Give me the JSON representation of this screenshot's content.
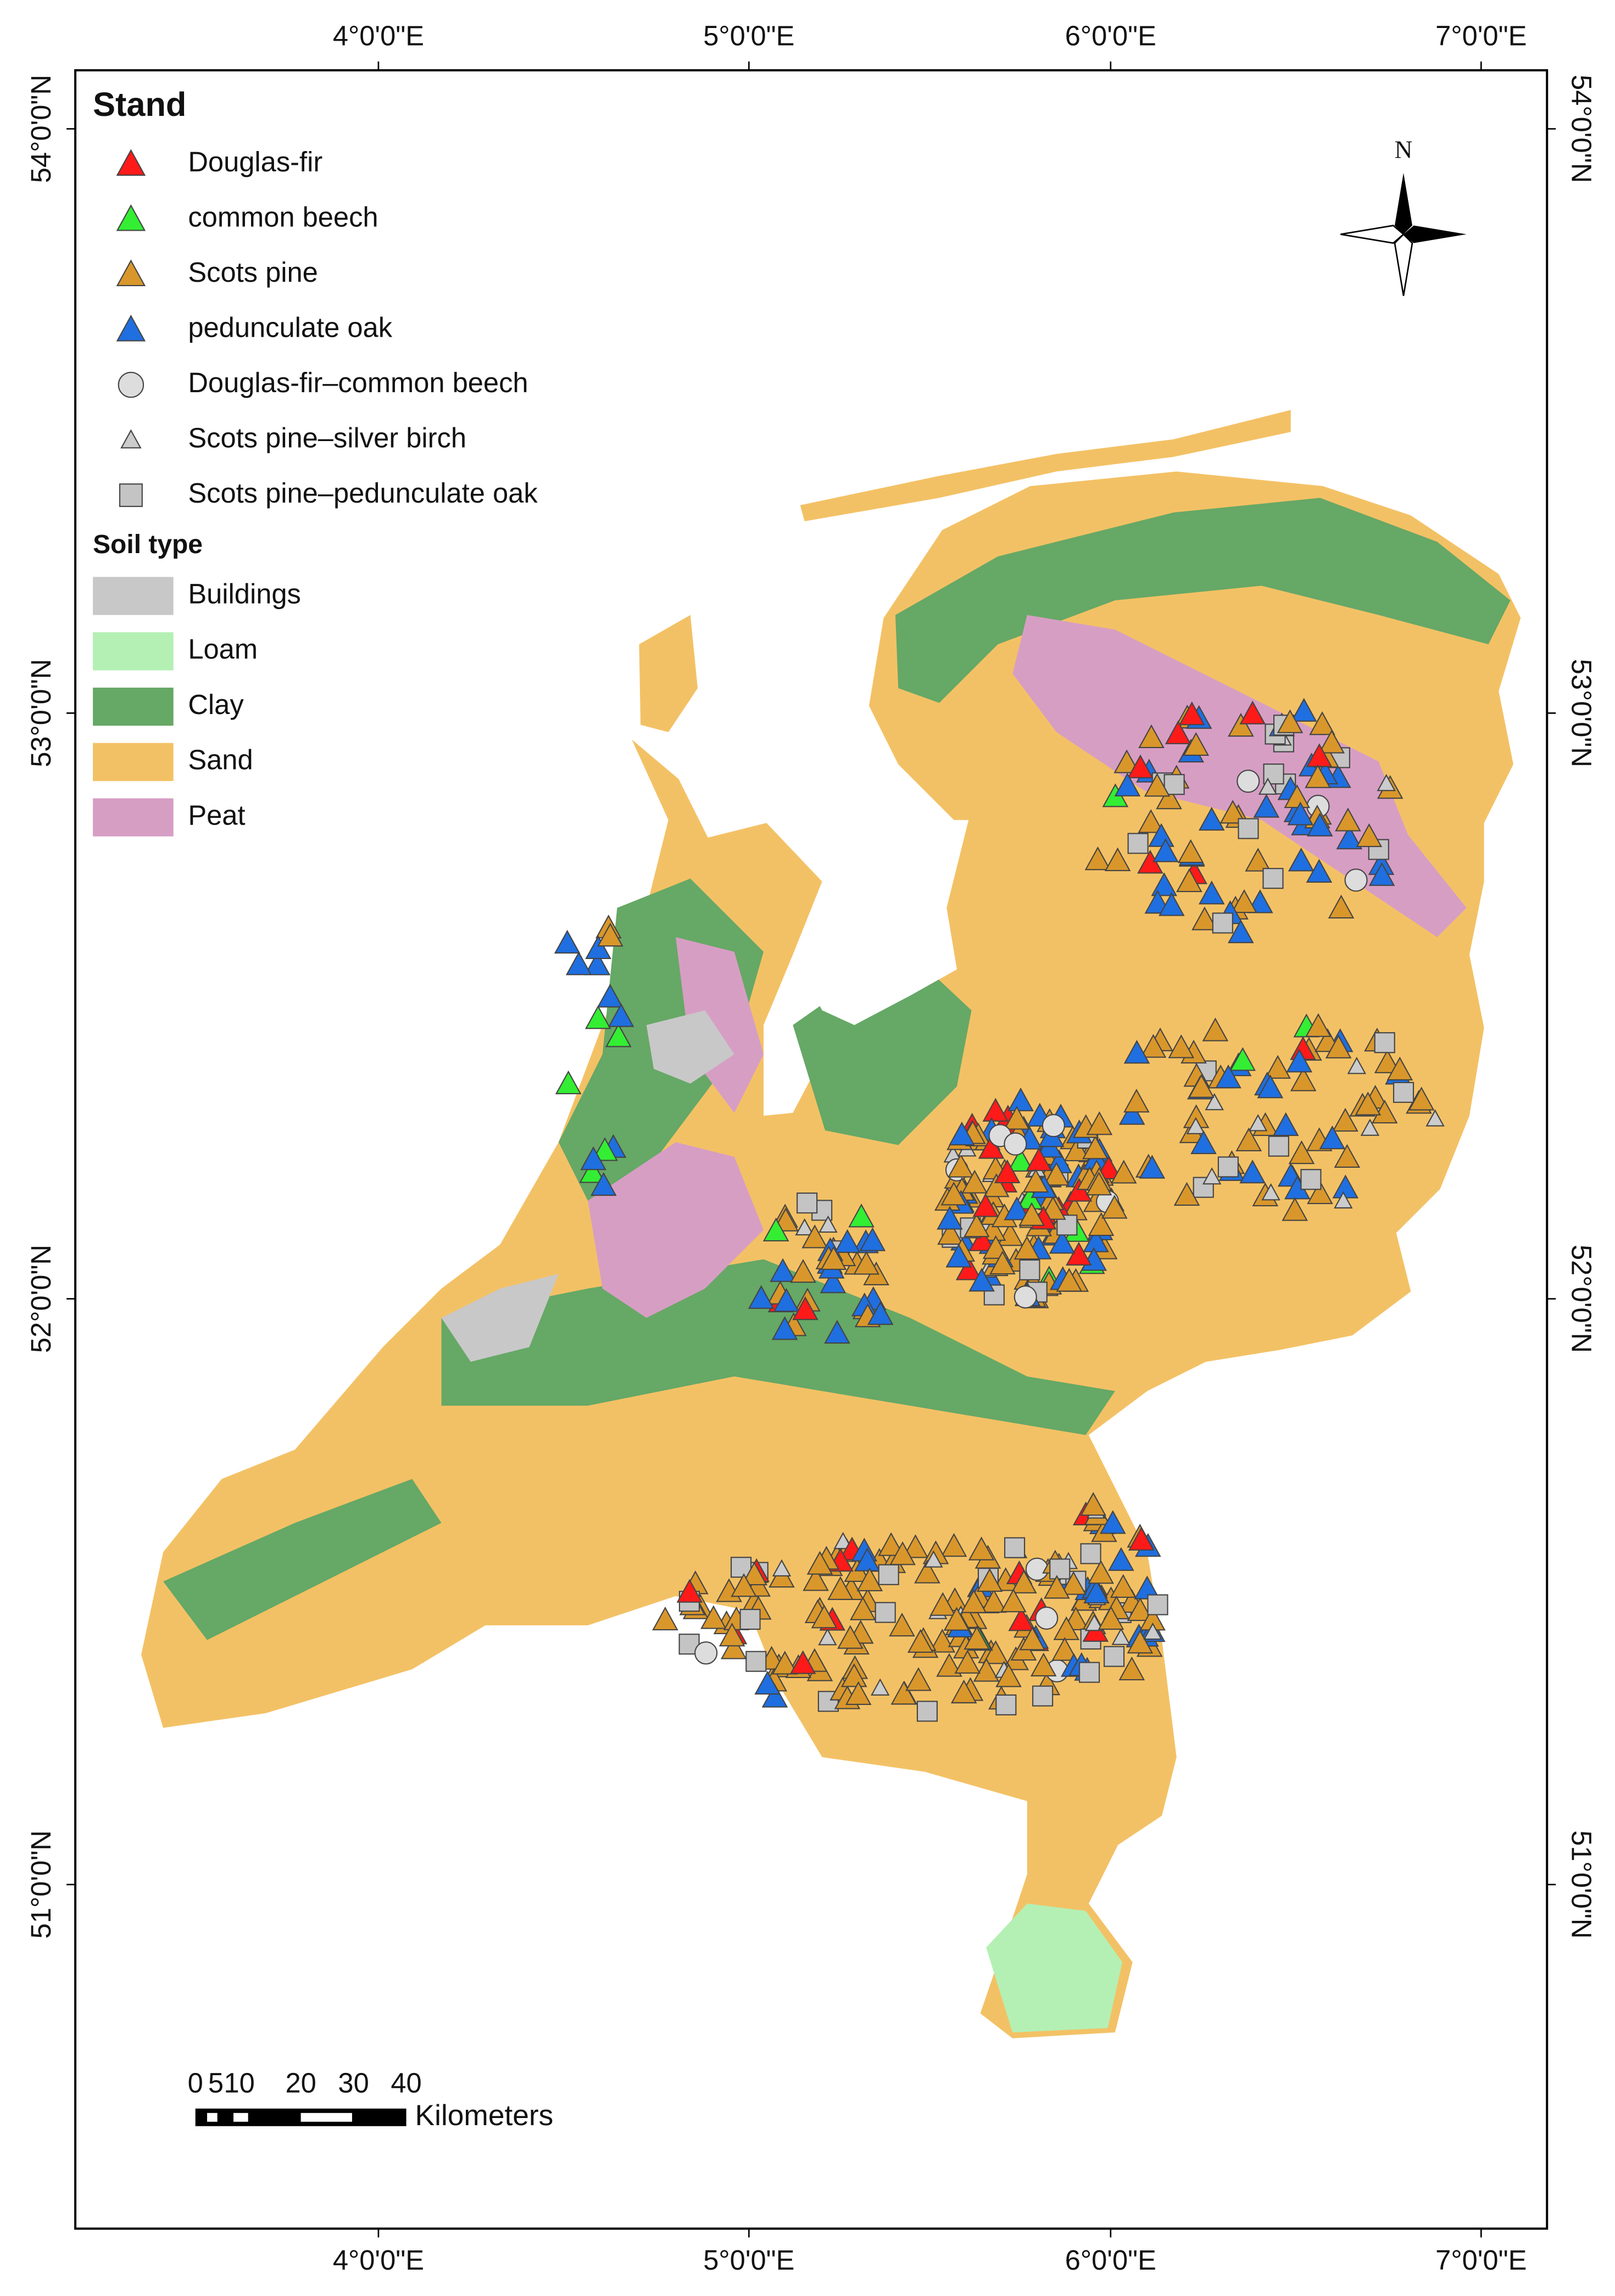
{
  "frame": {
    "longitude_labels": [
      "4°0'0\"E",
      "5°0'0\"E",
      "6°0'0\"E",
      "7°0'0\"E"
    ],
    "latitude_labels": [
      "54°0'0\"N",
      "53°0'0\"N",
      "52°0'0\"N",
      "51°0'0\"N"
    ]
  },
  "legend": {
    "stand_title": "Stand",
    "stand": [
      {
        "label": "Douglas-fir",
        "color": "#ff1a1a",
        "shape": "triangle"
      },
      {
        "label": "common beech",
        "color": "#33ee33",
        "shape": "triangle"
      },
      {
        "label": "Scots pine",
        "color": "#d9972b",
        "shape": "triangle"
      },
      {
        "label": "pedunculate oak",
        "color": "#1f6fe0",
        "shape": "triangle"
      },
      {
        "label": "Douglas-fir–common beech",
        "color": "#dddddd",
        "shape": "circle"
      },
      {
        "label": "Scots pine–silver birch",
        "color": "#cccccc",
        "shape": "small-triangle"
      },
      {
        "label": "Scots pine–pedunculate oak",
        "color": "#c4c4c4",
        "shape": "square"
      }
    ],
    "soil_title": "Soil type",
    "soil": [
      {
        "label": "Buildings",
        "color": "#c8c8c8"
      },
      {
        "label": "Loam",
        "color": "#b4f0b4"
      },
      {
        "label": "Clay",
        "color": "#66a866"
      },
      {
        "label": "Sand",
        "color": "#f3c165"
      },
      {
        "label": "Peat",
        "color": "#d79ec4"
      }
    ]
  },
  "scale_bar": {
    "labels": [
      "0",
      "5",
      "10",
      "20",
      "30",
      "40"
    ],
    "unit": "Kilometers"
  },
  "north": "N"
}
